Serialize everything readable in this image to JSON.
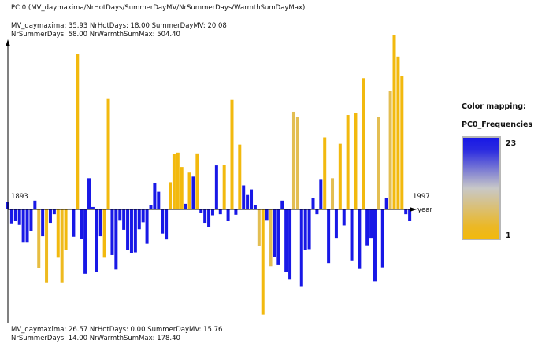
{
  "chart_data": {
    "type": "bar",
    "title": "PC 0 (MV_daymaxima/NrHotDays/SummerDayMV/NrSummerDays/WarmthSumDayMax)",
    "top_info_line1": "MV_daymaxima: 35.93 NrHotDays: 18.00 SummerDayMV: 20.08",
    "top_info_line2": "NrSummerDays: 58.00 NrWarmthSumMax: 504.40",
    "bottom_info_line1": "MV_daymaxima: 26.57 NrHotDays: 0.00 SummerDayMV: 15.76",
    "bottom_info_line2": "NrSummerDays: 14.00 NrWarmthSumMax: 178.40",
    "x_start_label": "1893",
    "x_end_label": "1997",
    "xlabel": "year",
    "x_start": 1893,
    "x_end": 1997,
    "values": [
      0.9,
      -2.6,
      -2.2,
      -2.9,
      -6.2,
      -6.2,
      -4.1,
      1.1,
      -11.0,
      -5.0,
      -13.6,
      -2.5,
      -0.9,
      -9.0,
      -13.6,
      -7.6,
      0.1,
      -5.1,
      19.4,
      -5.5,
      -12.0,
      3.9,
      0.3,
      -11.7,
      -5.0,
      -9.0,
      13.8,
      -8.5,
      -11.2,
      -2.1,
      -3.8,
      -7.6,
      -8.2,
      -8.0,
      -3.7,
      -2.4,
      -6.4,
      0.5,
      3.3,
      2.2,
      -4.5,
      -5.6,
      3.4,
      6.9,
      7.1,
      5.3,
      0.7,
      4.6,
      4.1,
      7.0,
      -0.7,
      -2.5,
      -3.3,
      -1.1,
      5.5,
      -0.9,
      5.6,
      -2.2,
      13.7,
      -1.0,
      8.1,
      3.0,
      1.8,
      2.5,
      0.5,
      -6.8,
      -19.6,
      -2.1,
      -10.6,
      -8.8,
      -10.4,
      1.1,
      -11.6,
      -13.1,
      12.2,
      11.6,
      -14.3,
      -7.5,
      -7.4,
      1.4,
      -0.9,
      3.7,
      9.0,
      -10.0,
      3.9,
      -5.3,
      8.2,
      -3.0,
      11.8,
      -9.5,
      12.0,
      -11.1,
      16.4,
      -6.7,
      -5.3,
      -13.4,
      11.6,
      -10.8,
      1.4,
      14.8,
      21.8,
      19.1,
      16.7,
      -0.9,
      -2.2
    ],
    "frequencies": [
      23,
      23,
      23,
      23,
      23,
      23,
      23,
      23,
      4,
      23,
      2,
      23,
      23,
      1,
      2,
      1,
      23,
      23,
      1,
      23,
      23,
      23,
      23,
      23,
      23,
      1,
      1,
      23,
      23,
      23,
      23,
      23,
      23,
      23,
      23,
      23,
      23,
      23,
      23,
      23,
      23,
      23,
      1,
      1,
      1,
      1,
      23,
      1,
      23,
      1,
      23,
      23,
      23,
      23,
      23,
      23,
      1,
      23,
      1,
      23,
      1,
      23,
      23,
      23,
      23,
      5,
      1,
      23,
      5,
      23,
      23,
      23,
      23,
      23,
      5,
      5,
      23,
      23,
      23,
      23,
      23,
      23,
      1,
      23,
      5,
      23,
      1,
      23,
      1,
      23,
      1,
      23,
      1,
      23,
      23,
      23,
      5,
      23,
      23,
      5,
      1,
      1,
      1,
      23,
      23
    ],
    "ymax": 24,
    "ymin": -22
  },
  "legend": {
    "title": "Color mapping:",
    "subtitle": "PC0_Frequencies",
    "max_label": "23",
    "min_label": "1",
    "color_high": "#1818e6",
    "color_mid": "#c8c8c8",
    "color_low": "#f2b90e"
  }
}
